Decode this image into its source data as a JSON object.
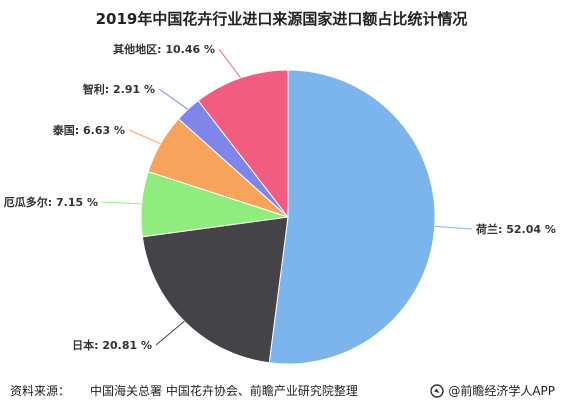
{
  "chart_data": {
    "type": "pie",
    "title": "2019年中国花卉行业进口来源国家进口额占比统计情况",
    "slices": [
      {
        "label": "荷兰",
        "value": 52.04,
        "display": "荷兰: 52.04 %",
        "color": "#7cb5ec"
      },
      {
        "label": "日本",
        "value": 20.81,
        "display": "日本: 20.81 %",
        "color": "#434348"
      },
      {
        "label": "厄瓜多尔",
        "value": 7.15,
        "display": "厄瓜多尔: 7.15 %",
        "color": "#90ed7d"
      },
      {
        "label": "泰国",
        "value": 6.63,
        "display": "泰国: 6.63 %",
        "color": "#f7a35c"
      },
      {
        "label": "智利",
        "value": 2.91,
        "display": "智利: 2.91 %",
        "color": "#8085e9"
      },
      {
        "label": "其他地区",
        "value": 10.46,
        "display": "其他地区: 10.46 %",
        "color": "#f15c80"
      }
    ]
  },
  "footer": {
    "source_label": "资料来源：",
    "source_value": "中国海关总署 中国花卉协会、前瞻产业研究院整理",
    "brand": "@前瞻经济学人APP"
  }
}
